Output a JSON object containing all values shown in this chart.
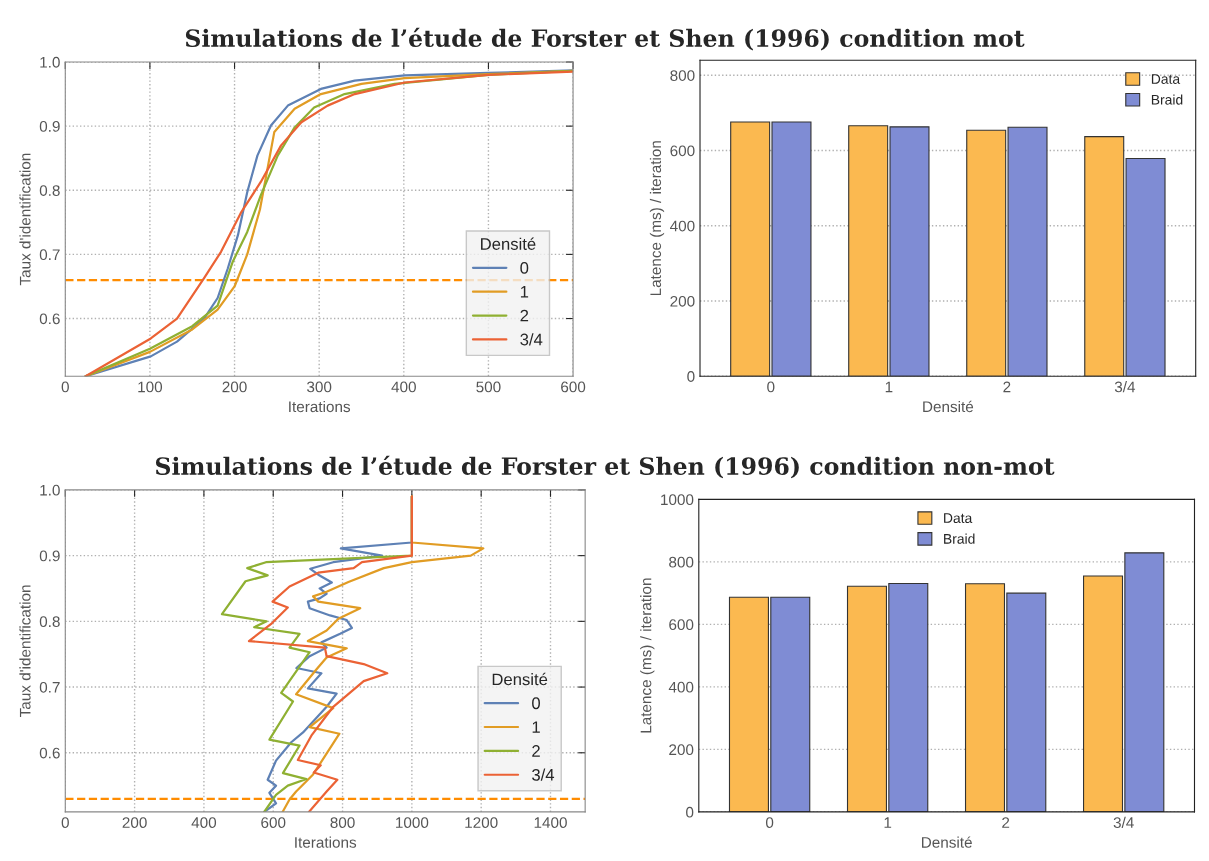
{
  "chart_data": [
    {
      "type": "line",
      "title": "Simulations de l’étude de Forster et Shen (1996) condition mot",
      "xlabel": "Iterations",
      "ylabel": "Taux d'identification",
      "legend_title": "Densité",
      "legend": "bottom right",
      "grid": true,
      "xlim": [
        0,
        600
      ],
      "ylim": [
        0.51,
        1.0
      ],
      "xticks": [
        0,
        100,
        200,
        300,
        400,
        500,
        600
      ],
      "yticks": [
        0.6,
        0.7,
        0.8,
        0.9,
        {
          "value": 1.0,
          "label": "1.0"
        }
      ],
      "ref_lines": [
        {
          "axis": "y",
          "value": 0.66,
          "color": "#ff8c00",
          "line_style": "dashed"
        }
      ],
      "series": [
        {
          "name": "0",
          "color": "#5e81b5",
          "x": [
            24,
            101,
            132,
            164,
            180,
            192,
            204,
            215,
            227,
            243,
            263,
            302,
            342,
            401,
            500,
            600
          ],
          "values": [
            0.51,
            0.541,
            0.564,
            0.6,
            0.632,
            0.678,
            0.73,
            0.797,
            0.854,
            0.901,
            0.932,
            0.958,
            0.971,
            0.979,
            0.983,
            0.987
          ]
        },
        {
          "name": "1",
          "color": "#e19c24",
          "x": [
            24,
            100,
            150,
            180,
            200,
            215,
            230,
            247,
            271,
            302,
            350,
            401,
            500,
            600
          ],
          "values": [
            0.51,
            0.548,
            0.583,
            0.614,
            0.65,
            0.7,
            0.77,
            0.891,
            0.927,
            0.95,
            0.966,
            0.975,
            0.981,
            0.986
          ]
        },
        {
          "name": "2",
          "color": "#8fb032",
          "x": [
            24,
            100,
            150,
            180,
            198,
            215,
            231,
            251,
            271,
            294,
            330,
            389,
            500,
            600
          ],
          "values": [
            0.51,
            0.553,
            0.588,
            0.62,
            0.689,
            0.735,
            0.792,
            0.854,
            0.898,
            0.929,
            0.95,
            0.966,
            0.98,
            0.986
          ]
        },
        {
          "name": "3/4",
          "color": "#eb6235",
          "x": [
            24,
            101,
            132,
            164,
            184,
            208,
            231,
            255,
            279,
            310,
            342,
            401,
            500,
            600
          ],
          "values": [
            0.51,
            0.569,
            0.6,
            0.663,
            0.704,
            0.766,
            0.813,
            0.87,
            0.906,
            0.932,
            0.95,
            0.968,
            0.98,
            0.985
          ]
        }
      ]
    },
    {
      "type": "bar",
      "xlabel": "Densité",
      "ylabel": "Latence (ms) / iteration",
      "legend": "top right",
      "grid": "y",
      "categories": [
        "0",
        "1",
        "2",
        "3/4"
      ],
      "ylim": [
        0,
        840
      ],
      "yticks": [
        0,
        200,
        400,
        600,
        800
      ],
      "series": [
        {
          "name": "Data",
          "color": "#fbb950",
          "values": [
            676,
            666,
            654,
            637
          ]
        },
        {
          "name": "Braid",
          "color": "#7f8cd4",
          "values": [
            676,
            663,
            662,
            579
          ]
        }
      ]
    },
    {
      "type": "line",
      "title": "Simulations de l’étude de Forster et Shen (1996) condition non-mot",
      "xlabel": "Iterations",
      "ylabel": "Taux d'identification",
      "legend_title": "Densité",
      "legend": "bottom right",
      "grid": true,
      "xlim": [
        0,
        1500
      ],
      "ylim": [
        0.51,
        1.0
      ],
      "xticks": [
        0,
        200,
        400,
        600,
        800,
        1000,
        1200,
        1400
      ],
      "yticks": [
        0.6,
        0.7,
        0.8,
        0.9,
        {
          "value": 1.0,
          "label": "1.0"
        }
      ],
      "ref_lines": [
        {
          "axis": "y",
          "value": 0.53,
          "color": "#ff8c00",
          "line_style": "dashed"
        }
      ],
      "series": [
        {
          "name": "0",
          "color": "#5e81b5",
          "x": [
            574,
            608,
            589,
            608,
            584,
            608,
            652,
            686,
            754,
            783,
            700,
            739,
            667,
            705,
            754,
            739,
            793,
            827,
            812,
            764,
            705,
            700,
            734,
            754,
            734,
            769,
            730,
            707,
            773,
            914,
            795,
            1000,
            1000
          ],
          "values": [
            0.51,
            0.523,
            0.539,
            0.55,
            0.559,
            0.588,
            0.616,
            0.631,
            0.67,
            0.69,
            0.698,
            0.721,
            0.729,
            0.747,
            0.76,
            0.768,
            0.781,
            0.79,
            0.802,
            0.809,
            0.82,
            0.83,
            0.835,
            0.842,
            0.85,
            0.859,
            0.871,
            0.88,
            0.89,
            0.9,
            0.911,
            0.92,
            0.99
          ]
        },
        {
          "name": "1",
          "color": "#e19c24",
          "x": [
            627,
            647,
            666,
            700,
            715,
            791,
            705,
            773,
            666,
            725,
            754,
            812,
            700,
            754,
            788,
            851,
            730,
            715,
            754,
            817,
            919,
            1000,
            1170,
            1206,
            1000,
            1000
          ],
          "values": [
            0.51,
            0.529,
            0.541,
            0.559,
            0.567,
            0.629,
            0.639,
            0.668,
            0.689,
            0.727,
            0.745,
            0.759,
            0.77,
            0.786,
            0.804,
            0.82,
            0.83,
            0.838,
            0.845,
            0.86,
            0.881,
            0.89,
            0.9,
            0.911,
            0.92,
            0.99
          ]
        },
        {
          "name": "2",
          "color": "#8fb032",
          "x": [
            574,
            608,
            642,
            696,
            628,
            676,
            589,
            657,
            623,
            705,
            647,
            676,
            545,
            581,
            452,
            520,
            584,
            525,
            579,
            1000,
            1000
          ],
          "values": [
            0.51,
            0.536,
            0.55,
            0.56,
            0.569,
            0.611,
            0.62,
            0.678,
            0.691,
            0.753,
            0.76,
            0.781,
            0.791,
            0.8,
            0.811,
            0.861,
            0.87,
            0.881,
            0.89,
            0.9,
            0.99
          ]
        },
        {
          "name": "3/4",
          "color": "#eb6235",
          "x": [
            703,
            754,
            785,
            717,
            737,
            671,
            710,
            773,
            861,
            929,
            861,
            754,
            749,
            530,
            596,
            642,
            598,
            647,
            730,
            832,
            856,
            1000,
            1000
          ],
          "values": [
            0.51,
            0.541,
            0.559,
            0.57,
            0.581,
            0.589,
            0.626,
            0.67,
            0.709,
            0.721,
            0.735,
            0.747,
            0.76,
            0.77,
            0.797,
            0.821,
            0.83,
            0.853,
            0.874,
            0.881,
            0.89,
            0.9,
            0.99
          ]
        }
      ]
    },
    {
      "type": "bar",
      "xlabel": "Densité",
      "ylabel": "Latence (ms) / iteration",
      "legend": "top",
      "grid": "y",
      "categories": [
        "0",
        "1",
        "2",
        "3/4"
      ],
      "ylim": [
        0,
        1000
      ],
      "yticks": [
        0,
        200,
        400,
        600,
        800,
        1000
      ],
      "series": [
        {
          "name": "Data",
          "color": "#fbb950",
          "values": [
            687,
            722,
            730,
            755
          ]
        },
        {
          "name": "Braid",
          "color": "#7f8cd4",
          "values": [
            687,
            731,
            700,
            829
          ]
        }
      ]
    }
  ]
}
